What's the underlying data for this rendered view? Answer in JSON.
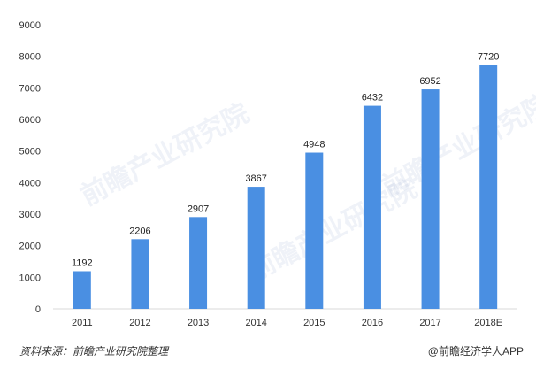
{
  "chart_data": {
    "type": "bar",
    "categories": [
      "2011",
      "2012",
      "2013",
      "2014",
      "2015",
      "2016",
      "2017",
      "2018E"
    ],
    "values": [
      1192,
      2206,
      2907,
      3867,
      4948,
      6432,
      6952,
      7720
    ],
    "data_labels": [
      "1192",
      "2206",
      "2907",
      "3867",
      "4948",
      "6432",
      "6952",
      "7720"
    ],
    "ylim": [
      0,
      9000
    ],
    "yticks": [
      "0",
      "1000",
      "2000",
      "3000",
      "4000",
      "5000",
      "6000",
      "7000",
      "8000",
      "9000"
    ],
    "grid": false,
    "legend": "none",
    "bar_color": "#4a8fe2"
  },
  "footer": {
    "source": "资料来源：前瞻产业研究院整理",
    "brand_icon": "@",
    "brand": "前瞻经济学人APP"
  },
  "watermark": {
    "text": "前瞻产业研究院"
  }
}
